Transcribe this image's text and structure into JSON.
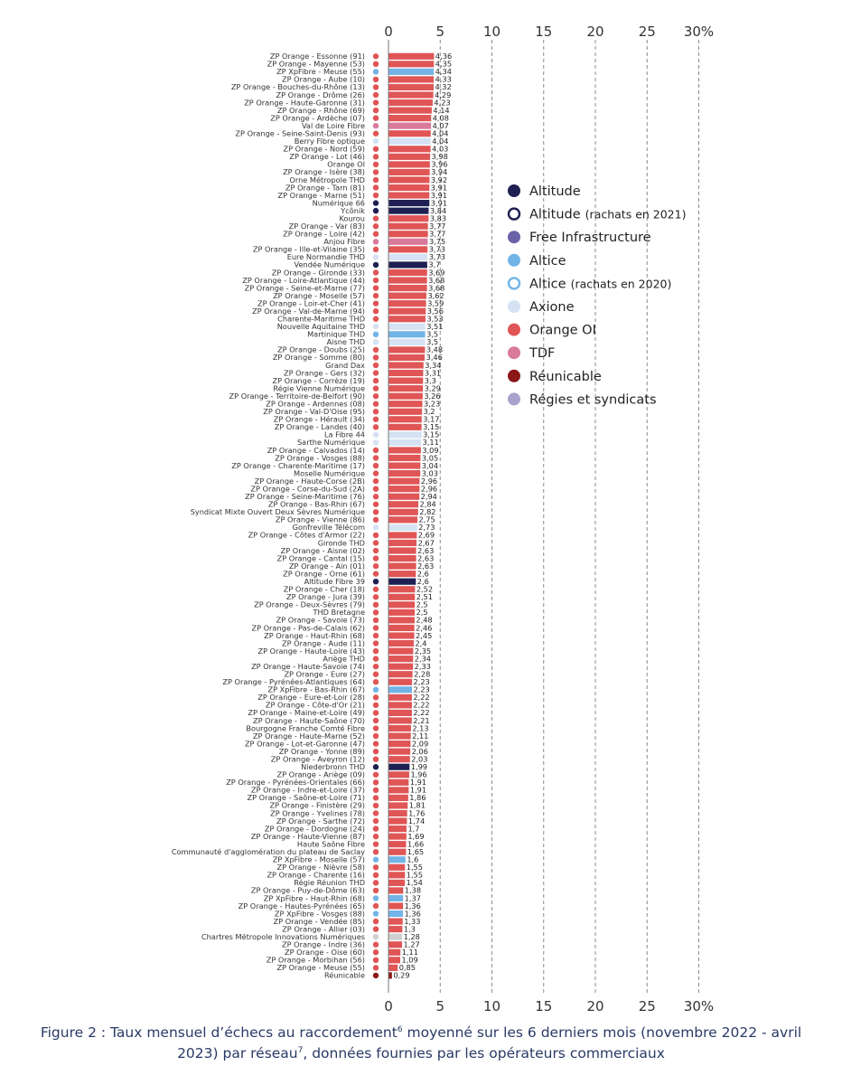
{
  "colors": {
    "altitude": "#1e1f52",
    "altitude_rachats": "#1e1f52",
    "free": "#6b62a8",
    "altice": "#72b4e6",
    "altice_rachats": "#72b4e6",
    "axione": "#d4e2f4",
    "orange": "#e05555",
    "tdf": "#d97a9c",
    "reunicable": "#8a1818",
    "regies": "#a8a2cc",
    "neutral": "#cfcfcf"
  },
  "caption": {
    "part1": "Figure 2 : Taux mensuel d’échecs au raccordement",
    "sup1": "6",
    "part2": " moyenné sur les 6 derniers mois (novembre 2022 - avril 2023) par réseau",
    "sup2": "7",
    "part3": ", données fournies par les opérateurs commerciaux"
  },
  "chart_data": {
    "type": "bar",
    "orientation": "horizontal",
    "title": "",
    "xlabel": "",
    "ylabel": "",
    "xlim": [
      0,
      30
    ],
    "x_ticks": [
      "0",
      "5",
      "10",
      "15",
      "20",
      "25",
      "30%"
    ],
    "x_tick_values": [
      0,
      5,
      10,
      15,
      20,
      25,
      30
    ],
    "grid": "vertical dashed",
    "legend_position": "right",
    "legend": [
      {
        "label": "Altitude",
        "note": "",
        "key": "altitude",
        "style": "filled"
      },
      {
        "label": "Altitude",
        "note": "(rachats en 2021)",
        "key": "altitude_rachats",
        "style": "ring"
      },
      {
        "label": "Free Infrastructure",
        "note": "",
        "key": "free",
        "style": "filled"
      },
      {
        "label": "Altice",
        "note": "",
        "key": "altice",
        "style": "filled"
      },
      {
        "label": "Altice",
        "note": "(rachats en 2020)",
        "key": "altice_rachats",
        "style": "ring"
      },
      {
        "label": "Axione",
        "note": "",
        "key": "axione",
        "style": "filled"
      },
      {
        "label": "Orange OI",
        "note": "",
        "key": "orange",
        "style": "filled"
      },
      {
        "label": "TDF",
        "note": "",
        "key": "tdf",
        "style": "filled"
      },
      {
        "label": "Réunicable",
        "note": "",
        "key": "reunicable",
        "style": "filled"
      },
      {
        "label": "Régies et syndicats",
        "note": "",
        "key": "regies",
        "style": "filled"
      }
    ],
    "rows": [
      {
        "name": "ZP Orange - Essonne (91)",
        "value": 4.36,
        "label": "4,36",
        "group": "orange"
      },
      {
        "name": "ZP Orange - Mayenne (53)",
        "value": 4.35,
        "label": "4,35",
        "group": "orange"
      },
      {
        "name": "ZP XpFibre - Meuse (55)",
        "value": 4.34,
        "label": "4,34",
        "group": "altice"
      },
      {
        "name": "ZP Orange - Aube (10)",
        "value": 4.33,
        "label": "4,33",
        "group": "orange"
      },
      {
        "name": "ZP Orange - Bouches-du-Rhône (13)",
        "value": 4.32,
        "label": "4,32",
        "group": "orange"
      },
      {
        "name": "ZP Orange - Drôme (26)",
        "value": 4.29,
        "label": "4,29",
        "group": "orange"
      },
      {
        "name": "ZP Orange - Haute-Garonne (31)",
        "value": 4.23,
        "label": "4,23",
        "group": "orange"
      },
      {
        "name": "ZP Orange - Rhône (69)",
        "value": 4.14,
        "label": "4,14",
        "group": "orange"
      },
      {
        "name": "ZP Orange - Ardèche (07)",
        "value": 4.08,
        "label": "4,08",
        "group": "orange"
      },
      {
        "name": "Val de Loire Fibre",
        "value": 4.07,
        "label": "4,07",
        "group": "tdf"
      },
      {
        "name": "ZP Orange - Seine-Saint-Denis (93)",
        "value": 4.04,
        "label": "4,04",
        "group": "orange"
      },
      {
        "name": "Berry Fibre optique",
        "value": 4.04,
        "label": "4,04",
        "group": "axione"
      },
      {
        "name": "ZP Orange - Nord (59)",
        "value": 4.03,
        "label": "4,03",
        "group": "orange"
      },
      {
        "name": "ZP Orange - Lot (46)",
        "value": 3.98,
        "label": "3,98",
        "group": "orange"
      },
      {
        "name": "Orange OI",
        "value": 3.96,
        "label": "3,96",
        "group": "orange"
      },
      {
        "name": "ZP Orange - Isère (38)",
        "value": 3.94,
        "label": "3,94",
        "group": "orange"
      },
      {
        "name": "Orne Métropole THD",
        "value": 3.92,
        "label": "3,92",
        "group": "orange"
      },
      {
        "name": "ZP Orange - Tarn (81)",
        "value": 3.91,
        "label": "3,91",
        "group": "orange"
      },
      {
        "name": "ZP Orange - Marne (51)",
        "value": 3.91,
        "label": "3,91",
        "group": "orange"
      },
      {
        "name": "Numérique 66",
        "value": 3.91,
        "label": "3,91",
        "group": "altitude"
      },
      {
        "name": "Ycônik",
        "value": 3.84,
        "label": "3,84",
        "group": "altitude"
      },
      {
        "name": "Kourou",
        "value": 3.83,
        "label": "3,83",
        "group": "orange"
      },
      {
        "name": "ZP Orange - Var (83)",
        "value": 3.77,
        "label": "3,77",
        "group": "orange"
      },
      {
        "name": "ZP Orange - Loire (42)",
        "value": 3.77,
        "label": "3,77",
        "group": "orange"
      },
      {
        "name": "Anjou Fibre",
        "value": 3.75,
        "label": "3,75",
        "group": "tdf"
      },
      {
        "name": "ZP Orange - Ille-et-Vilaine (35)",
        "value": 3.73,
        "label": "3,73",
        "group": "orange"
      },
      {
        "name": "Eure Normandie THD",
        "value": 3.73,
        "label": "3,73",
        "group": "axione"
      },
      {
        "name": "Vendée Numérique",
        "value": 3.7,
        "label": "3,7",
        "group": "altitude"
      },
      {
        "name": "ZP Orange - Gironde (33)",
        "value": 3.69,
        "label": "3,69",
        "group": "orange"
      },
      {
        "name": "ZP Orange - Loire-Atlantique (44)",
        "value": 3.68,
        "label": "3,68",
        "group": "orange"
      },
      {
        "name": "ZP Orange - Seine-et-Marne (77)",
        "value": 3.68,
        "label": "3,68",
        "group": "orange"
      },
      {
        "name": "ZP Orange - Moselle (57)",
        "value": 3.62,
        "label": "3,62",
        "group": "orange"
      },
      {
        "name": "ZP Orange - Loir-et-Cher (41)",
        "value": 3.59,
        "label": "3,59",
        "group": "orange"
      },
      {
        "name": "ZP Orange - Val-de-Marne (94)",
        "value": 3.56,
        "label": "3,56",
        "group": "orange"
      },
      {
        "name": "Charente-Maritime THD",
        "value": 3.53,
        "label": "3,53",
        "group": "orange"
      },
      {
        "name": "Nouvelle Aquitaine THD",
        "value": 3.51,
        "label": "3,51",
        "group": "axione"
      },
      {
        "name": "Martinique THD",
        "value": 3.5,
        "label": "3,5",
        "group": "altice"
      },
      {
        "name": "Aisne THD",
        "value": 3.5,
        "label": "3,5",
        "group": "axione"
      },
      {
        "name": "ZP Orange - Doubs (25)",
        "value": 3.48,
        "label": "3,48",
        "group": "orange"
      },
      {
        "name": "ZP Orange - Somme (80)",
        "value": 3.46,
        "label": "3,46",
        "group": "orange"
      },
      {
        "name": "Grand Dax",
        "value": 3.34,
        "label": "3,34",
        "group": "orange"
      },
      {
        "name": "ZP Orange - Gers (32)",
        "value": 3.31,
        "label": "3,31",
        "group": "orange"
      },
      {
        "name": "ZP Orange - Corrèze (19)",
        "value": 3.3,
        "label": "3,3",
        "group": "orange"
      },
      {
        "name": "Régie Vienne Numérique",
        "value": 3.29,
        "label": "3,29",
        "group": "orange"
      },
      {
        "name": "ZP Orange - Territoire-de-Belfort (90)",
        "value": 3.26,
        "label": "3,26",
        "group": "orange"
      },
      {
        "name": "ZP Orange - Ardennes (08)",
        "value": 3.23,
        "label": "3,23",
        "group": "orange"
      },
      {
        "name": "ZP Orange - Val-D'Oise (95)",
        "value": 3.2,
        "label": "3,2",
        "group": "orange"
      },
      {
        "name": "ZP Orange - Hérault (34)",
        "value": 3.17,
        "label": "3,17",
        "group": "orange"
      },
      {
        "name": "ZP Orange - Landes (40)",
        "value": 3.15,
        "label": "3,15",
        "group": "orange"
      },
      {
        "name": "La Fibre 44",
        "value": 3.15,
        "label": "3,15",
        "group": "axione"
      },
      {
        "name": "Sarthe Numérique",
        "value": 3.11,
        "label": "3,11",
        "group": "axione"
      },
      {
        "name": "ZP Orange - Calvados (14)",
        "value": 3.09,
        "label": "3,09",
        "group": "orange"
      },
      {
        "name": "ZP Orange - Vosges (88)",
        "value": 3.05,
        "label": "3,05",
        "group": "orange"
      },
      {
        "name": "ZP Orange - Charente-Maritime (17)",
        "value": 3.04,
        "label": "3,04",
        "group": "orange"
      },
      {
        "name": "Moselle Numérique",
        "value": 3.03,
        "label": "3,03",
        "group": "orange"
      },
      {
        "name": "ZP Orange - Haute-Corse (2B)",
        "value": 2.96,
        "label": "2,96",
        "group": "orange"
      },
      {
        "name": "ZP Orange - Corse-du-Sud (2A)",
        "value": 2.96,
        "label": "2,96",
        "group": "orange"
      },
      {
        "name": "ZP Orange - Seine-Maritime (76)",
        "value": 2.94,
        "label": "2,94",
        "group": "orange"
      },
      {
        "name": "ZP Orange - Bas-Rhin (67)",
        "value": 2.84,
        "label": "2,84",
        "group": "orange"
      },
      {
        "name": "Syndicat Mixte Ouvert Deux Sèvres Numérique",
        "value": 2.82,
        "label": "2,82",
        "group": "orange"
      },
      {
        "name": "ZP Orange - Vienne (86)",
        "value": 2.75,
        "label": "2,75",
        "group": "orange"
      },
      {
        "name": "Gonfreville Télécom",
        "value": 2.73,
        "label": "2,73",
        "group": "axione"
      },
      {
        "name": "ZP Orange - Côtes d'Armor (22)",
        "value": 2.69,
        "label": "2,69",
        "group": "orange"
      },
      {
        "name": "Gironde THD",
        "value": 2.67,
        "label": "2,67",
        "group": "orange"
      },
      {
        "name": "ZP Orange - Aisne (02)",
        "value": 2.63,
        "label": "2,63",
        "group": "orange"
      },
      {
        "name": "ZP Orange - Cantal (15)",
        "value": 2.63,
        "label": "2,63",
        "group": "orange"
      },
      {
        "name": "ZP Orange - Ain (01)",
        "value": 2.63,
        "label": "2,63",
        "group": "orange"
      },
      {
        "name": "ZP Orange - Orne (61)",
        "value": 2.6,
        "label": "2,6",
        "group": "orange"
      },
      {
        "name": "Altitude Fibre 39",
        "value": 2.6,
        "label": "2,6",
        "group": "altitude"
      },
      {
        "name": "ZP Orange - Cher (18)",
        "value": 2.52,
        "label": "2,52",
        "group": "orange"
      },
      {
        "name": "ZP Orange - Jura (39)",
        "value": 2.51,
        "label": "2,51",
        "group": "orange"
      },
      {
        "name": "ZP Orange - Deux-Sèvres (79)",
        "value": 2.5,
        "label": "2,5",
        "group": "orange"
      },
      {
        "name": "THD Bretagne",
        "value": 2.5,
        "label": "2,5",
        "group": "orange"
      },
      {
        "name": "ZP Orange - Savoie (73)",
        "value": 2.48,
        "label": "2,48",
        "group": "orange"
      },
      {
        "name": "ZP Orange - Pas-de-Calais (62)",
        "value": 2.46,
        "label": "2,46",
        "group": "orange"
      },
      {
        "name": "ZP Orange - Haut-Rhin (68)",
        "value": 2.45,
        "label": "2,45",
        "group": "orange"
      },
      {
        "name": "ZP Orange - Aude (11)",
        "value": 2.4,
        "label": "2,4",
        "group": "orange"
      },
      {
        "name": "ZP Orange - Haute-Loire (43)",
        "value": 2.35,
        "label": "2,35",
        "group": "orange"
      },
      {
        "name": "Ariège THD",
        "value": 2.34,
        "label": "2,34",
        "group": "orange"
      },
      {
        "name": "ZP Orange - Haute-Savoie (74)",
        "value": 2.33,
        "label": "2,33",
        "group": "orange"
      },
      {
        "name": "ZP Orange - Eure (27)",
        "value": 2.28,
        "label": "2,28",
        "group": "orange"
      },
      {
        "name": "ZP Orange - Pyrénées-Atlantiques (64)",
        "value": 2.23,
        "label": "2,23",
        "group": "orange"
      },
      {
        "name": "ZP XpFibre - Bas-Rhin (67)",
        "value": 2.23,
        "label": "2,23",
        "group": "altice"
      },
      {
        "name": "ZP Orange - Eure-et-Loir (28)",
        "value": 2.22,
        "label": "2,22",
        "group": "orange"
      },
      {
        "name": "ZP Orange - Côte-d'Or (21)",
        "value": 2.22,
        "label": "2,22",
        "group": "orange"
      },
      {
        "name": "ZP Orange - Maine-et-Loire (49)",
        "value": 2.22,
        "label": "2,22",
        "group": "orange"
      },
      {
        "name": "ZP Orange - Haute-Saône (70)",
        "value": 2.21,
        "label": "2,21",
        "group": "orange"
      },
      {
        "name": "Bourgogne Franche Comté Fibre",
        "value": 2.13,
        "label": "2,13",
        "group": "orange"
      },
      {
        "name": "ZP Orange - Haute-Marne (52)",
        "value": 2.11,
        "label": "2,11",
        "group": "orange"
      },
      {
        "name": "ZP Orange - Lot-et-Garonne (47)",
        "value": 2.09,
        "label": "2,09",
        "group": "orange"
      },
      {
        "name": "ZP Orange - Yonne (89)",
        "value": 2.06,
        "label": "2,06",
        "group": "orange"
      },
      {
        "name": "ZP Orange - Aveyron (12)",
        "value": 2.03,
        "label": "2,03",
        "group": "orange"
      },
      {
        "name": "Niederbronn THD",
        "value": 1.99,
        "label": "1,99",
        "group": "altitude"
      },
      {
        "name": "ZP Orange - Ariège (09)",
        "value": 1.96,
        "label": "1,96",
        "group": "orange"
      },
      {
        "name": "ZP Orange - Pyrénées-Orientales (66)",
        "value": 1.91,
        "label": "1,91",
        "group": "orange"
      },
      {
        "name": "ZP Orange - Indre-et-Loire (37)",
        "value": 1.91,
        "label": "1,91",
        "group": "orange"
      },
      {
        "name": "ZP Orange - Saône-et-Loire (71)",
        "value": 1.86,
        "label": "1,86",
        "group": "orange"
      },
      {
        "name": "ZP Orange - Finistère (29)",
        "value": 1.81,
        "label": "1,81",
        "group": "orange"
      },
      {
        "name": "ZP Orange - Yvelines (78)",
        "value": 1.76,
        "label": "1,76",
        "group": "orange"
      },
      {
        "name": "ZP Orange - Sarthe (72)",
        "value": 1.74,
        "label": "1,74",
        "group": "orange"
      },
      {
        "name": "ZP Orange - Dordogne (24)",
        "value": 1.7,
        "label": "1,7",
        "group": "orange"
      },
      {
        "name": "ZP Orange - Haute-Vienne (87)",
        "value": 1.69,
        "label": "1,69",
        "group": "orange"
      },
      {
        "name": "Haute Saône Fibre",
        "value": 1.66,
        "label": "1,66",
        "group": "orange"
      },
      {
        "name": "Communauté d'agglomération du plateau de Saclay",
        "value": 1.65,
        "label": "1,65",
        "group": "orange"
      },
      {
        "name": "ZP XpFibre - Moselle (57)",
        "value": 1.6,
        "label": "1,6",
        "group": "altice"
      },
      {
        "name": "ZP Orange - Nièvre (58)",
        "value": 1.55,
        "label": "1,55",
        "group": "orange"
      },
      {
        "name": "ZP Orange - Charente (16)",
        "value": 1.55,
        "label": "1,55",
        "group": "orange"
      },
      {
        "name": "Régie Réunion THD",
        "value": 1.54,
        "label": "1,54",
        "group": "orange"
      },
      {
        "name": "ZP Orange - Puy-de-Dôme (63)",
        "value": 1.38,
        "label": "1,38",
        "group": "orange"
      },
      {
        "name": "ZP XpFibre - Haut-Rhin (68)",
        "value": 1.37,
        "label": "1,37",
        "group": "altice"
      },
      {
        "name": "ZP Orange - Hautes-Pyrénées (65)",
        "value": 1.36,
        "label": "1,36",
        "group": "orange"
      },
      {
        "name": "ZP XpFibre - Vosges (88)",
        "value": 1.36,
        "label": "1,36",
        "group": "altice"
      },
      {
        "name": "ZP Orange - Vendée (85)",
        "value": 1.33,
        "label": "1,33",
        "group": "orange"
      },
      {
        "name": "ZP Orange - Allier (03)",
        "value": 1.3,
        "label": "1,3",
        "group": "orange"
      },
      {
        "name": "Chartres Métropole Innovations Numériques",
        "value": 1.28,
        "label": "1,28",
        "group": "neutral"
      },
      {
        "name": "ZP Orange - Indre (36)",
        "value": 1.27,
        "label": "1,27",
        "group": "orange"
      },
      {
        "name": "ZP Orange - Oise (60)",
        "value": 1.11,
        "label": "1,11",
        "group": "orange"
      },
      {
        "name": "ZP Orange - Morbihan (56)",
        "value": 1.09,
        "label": "1,09",
        "group": "orange"
      },
      {
        "name": "ZP Orange - Meuse (55)",
        "value": 0.85,
        "label": "0,85",
        "group": "orange"
      },
      {
        "name": "Réunicable",
        "value": 0.29,
        "label": "0,29",
        "group": "reunicable"
      }
    ]
  }
}
